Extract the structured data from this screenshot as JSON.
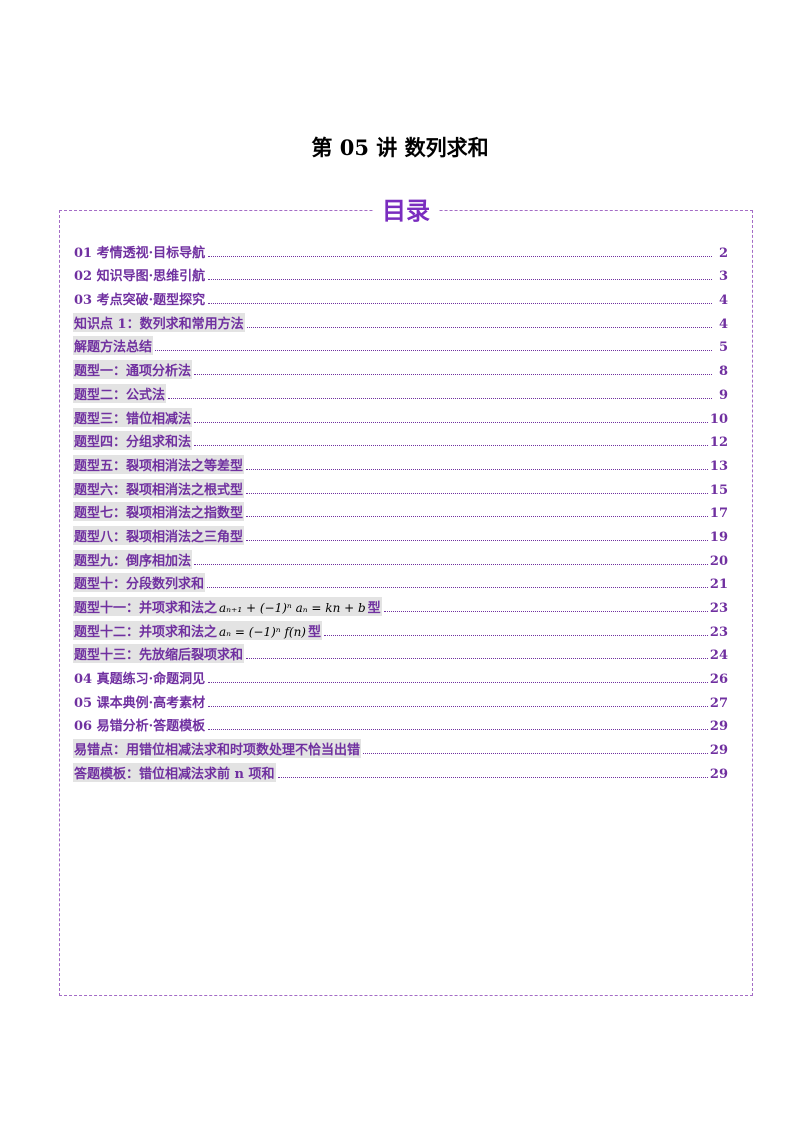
{
  "title": "第 05 讲  数列求和",
  "toc_heading": "目录",
  "toc": [
    {
      "label": "01 考情透视·目标导航",
      "page": "2",
      "sub": false
    },
    {
      "label": "02 知识导图·思维引航",
      "page": "3",
      "sub": false
    },
    {
      "label": "03 考点突破·题型探究",
      "page": "4",
      "sub": false
    },
    {
      "label": "知识点 1：数列求和常用方法",
      "page": "4",
      "sub": true
    },
    {
      "label": "解题方法总结",
      "page": "5",
      "sub": true
    },
    {
      "label": "题型一：通项分析法",
      "page": "8",
      "sub": true
    },
    {
      "label": "题型二：公式法",
      "page": "9",
      "sub": true
    },
    {
      "label": "题型三：错位相减法",
      "page": "10",
      "sub": true
    },
    {
      "label": "题型四：分组求和法",
      "page": "12",
      "sub": true
    },
    {
      "label": "题型五：裂项相消法之等差型",
      "page": "13",
      "sub": true
    },
    {
      "label": "题型六：裂项相消法之根式型",
      "page": "15",
      "sub": true
    },
    {
      "label": "题型七：裂项相消法之指数型",
      "page": "17",
      "sub": true
    },
    {
      "label": "题型八：裂项相消法之三角型",
      "page": "19",
      "sub": true
    },
    {
      "label": "题型九：倒序相加法",
      "page": "20",
      "sub": true
    },
    {
      "label": "题型十：分段数列求和",
      "page": "21",
      "sub": true
    },
    {
      "label": "题型十一：并项求和法之",
      "formula": "aₙ₊₁ + (−1)ⁿ aₙ = kn + b",
      "suffix": "型",
      "page": "23",
      "sub": true
    },
    {
      "label": "题型十二：并项求和法之",
      "formula": "aₙ = (−1)ⁿ f(n)",
      "suffix": "型",
      "page": "23",
      "sub": true
    },
    {
      "label": "题型十三：先放缩后裂项求和",
      "page": "24",
      "sub": true
    },
    {
      "label": "04 真题练习·命题洞见",
      "page": "26",
      "sub": false
    },
    {
      "label": "05 课本典例·高考素材",
      "page": "27",
      "sub": false
    },
    {
      "label": "06 易错分析·答题模板",
      "page": "29",
      "sub": false
    },
    {
      "label": "易错点：用错位相减法求和时项数处理不恰当出错",
      "page": "29",
      "sub": true
    },
    {
      "label": "答题模板：错位相减法求前 n 项和",
      "page": "29",
      "sub": true
    }
  ]
}
